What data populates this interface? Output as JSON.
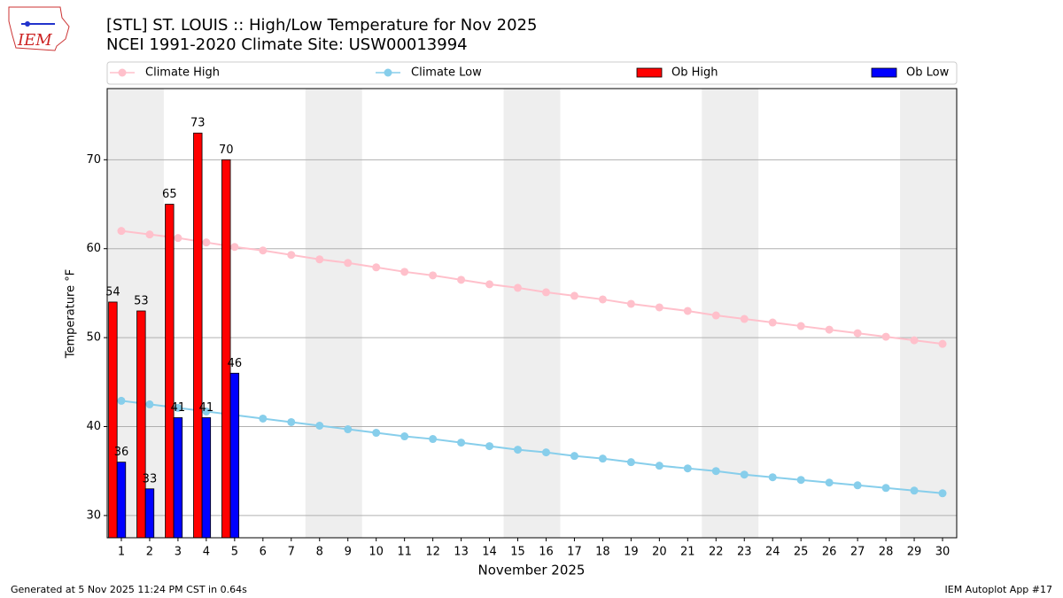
{
  "chart_data": {
    "type": "bar",
    "title": "[STL] ST. LOUIS :: High/Low Temperature for Nov 2025",
    "subtitle": "NCEI 1991-2020 Climate Site: USW00013994",
    "logo_text": "IEM",
    "x_label": "November 2025",
    "y_label": "Temperature °F",
    "footer_left": "Generated at 5 Nov 2025 11:24 PM CST in 0.64s",
    "footer_right": "IEM Autoplot App #17",
    "x": [
      1,
      2,
      3,
      4,
      5,
      6,
      7,
      8,
      9,
      10,
      11,
      12,
      13,
      14,
      15,
      16,
      17,
      18,
      19,
      20,
      21,
      22,
      23,
      24,
      25,
      26,
      27,
      28,
      29,
      30
    ],
    "xlim": [
      0.5,
      30.5
    ],
    "xticks": [
      1,
      2,
      3,
      4,
      5,
      6,
      7,
      8,
      9,
      10,
      11,
      12,
      13,
      14,
      15,
      16,
      17,
      18,
      19,
      20,
      21,
      22,
      23,
      24,
      25,
      26,
      27,
      28,
      29,
      30
    ],
    "ylim": [
      27.5,
      78
    ],
    "yticks": [
      30,
      40,
      50,
      60,
      70
    ],
    "grid": true,
    "shaded_ranges": [
      [
        0.5,
        2.5
      ],
      [
        7.5,
        9.5
      ],
      [
        14.5,
        16.5
      ],
      [
        21.5,
        23.5
      ],
      [
        28.5,
        30.5
      ]
    ],
    "shade_color": "#eeeeee",
    "series": [
      {
        "name": "Climate High",
        "type": "line",
        "color": "#ffc0cb",
        "values": [
          62.0,
          61.6,
          61.2,
          60.7,
          60.2,
          59.8,
          59.3,
          58.8,
          58.4,
          57.9,
          57.4,
          57.0,
          56.5,
          56.0,
          55.6,
          55.1,
          54.7,
          54.3,
          53.8,
          53.4,
          53.0,
          52.5,
          52.1,
          51.7,
          51.3,
          50.9,
          50.5,
          50.1,
          49.7,
          49.3
        ]
      },
      {
        "name": "Climate Low",
        "type": "line",
        "color": "#87ceeb",
        "values": [
          42.9,
          42.5,
          42.1,
          41.7,
          41.3,
          40.9,
          40.5,
          40.1,
          39.7,
          39.3,
          38.9,
          38.6,
          38.2,
          37.8,
          37.4,
          37.1,
          36.7,
          36.4,
          36.0,
          35.6,
          35.3,
          35.0,
          34.6,
          34.3,
          34.0,
          33.7,
          33.4,
          33.1,
          32.8,
          32.5
        ]
      },
      {
        "name": "Ob High",
        "type": "bar",
        "color": "#ff0000",
        "values": [
          54,
          53,
          65,
          73,
          70,
          null,
          null,
          null,
          null,
          null,
          null,
          null,
          null,
          null,
          null,
          null,
          null,
          null,
          null,
          null,
          null,
          null,
          null,
          null,
          null,
          null,
          null,
          null,
          null,
          null
        ]
      },
      {
        "name": "Ob Low",
        "type": "bar",
        "color": "#0000ff",
        "values": [
          36,
          33,
          41,
          41,
          46,
          null,
          null,
          null,
          null,
          null,
          null,
          null,
          null,
          null,
          null,
          null,
          null,
          null,
          null,
          null,
          null,
          null,
          null,
          null,
          null,
          null,
          null,
          null,
          null,
          null
        ]
      }
    ]
  }
}
